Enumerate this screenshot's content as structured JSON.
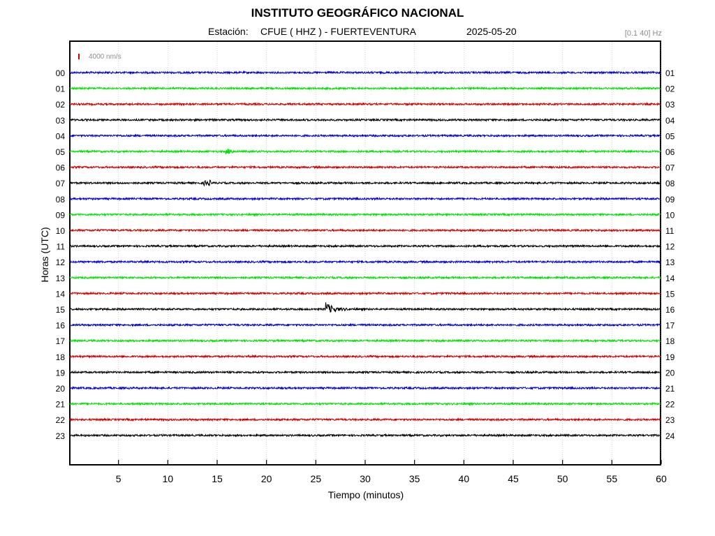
{
  "header": {
    "title": "INSTITUTO GEOGRÁFICO NACIONAL",
    "station_label": "Estación:",
    "station": "CFUE ( HHZ ) - FUERTEVENTURA",
    "date": "2025-05-20",
    "filter": "[0.1 40] Hz",
    "scale": "4000 nm/s"
  },
  "colors": {
    "blue": "#0000cc",
    "green": "#00e000",
    "red": "#cc0000",
    "black": "#000000",
    "scale": "#d40000",
    "filter_text": "#8c8c8c"
  },
  "chart_data": {
    "type": "line",
    "title": "INSTITUTO GEOGRÁFICO NACIONAL",
    "xlabel": "Tiempo (minutos)",
    "ylabel": "Horas (UTC)",
    "xlim": [
      0,
      60
    ],
    "x_ticks": [
      "5",
      "10",
      "15",
      "20",
      "25",
      "30",
      "35",
      "40",
      "45",
      "50",
      "55",
      "60"
    ],
    "x_tick_values": [
      5,
      10,
      15,
      20,
      25,
      30,
      35,
      40,
      45,
      50,
      55,
      60
    ],
    "y_labels_left": [
      "00",
      "01",
      "02",
      "03",
      "04",
      "05",
      "06",
      "07",
      "08",
      "09",
      "10",
      "11",
      "12",
      "13",
      "14",
      "15",
      "16",
      "17",
      "18",
      "19",
      "20",
      "21",
      "22",
      "23"
    ],
    "y_labels_right": [
      "01",
      "02",
      "03",
      "04",
      "05",
      "06",
      "07",
      "08",
      "09",
      "10",
      "11",
      "12",
      "13",
      "14",
      "15",
      "16",
      "17",
      "18",
      "19",
      "20",
      "21",
      "22",
      "23",
      "24"
    ],
    "trace_color_cycle": [
      "blue",
      "green",
      "red",
      "black"
    ],
    "grid": true,
    "events": [
      {
        "hour": "05",
        "minute": 16.2,
        "amplitude": "small"
      },
      {
        "hour": "07",
        "minute": 14.0,
        "amplitude": "small"
      },
      {
        "hour": "15",
        "minute": 26.0,
        "amplitude": "large",
        "duration_minutes": 3.0
      }
    ]
  }
}
